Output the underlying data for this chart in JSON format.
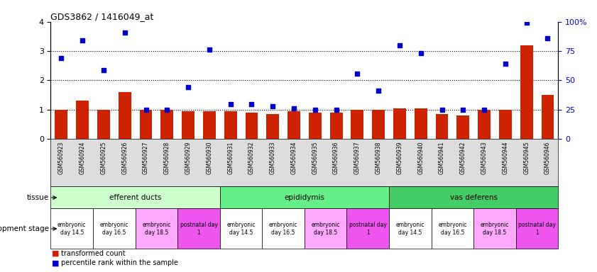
{
  "title": "GDS3862 / 1416049_at",
  "gsm_labels": [
    "GSM560923",
    "GSM560924",
    "GSM560925",
    "GSM560926",
    "GSM560927",
    "GSM560928",
    "GSM560929",
    "GSM560930",
    "GSM560931",
    "GSM560932",
    "GSM560933",
    "GSM560934",
    "GSM560935",
    "GSM560936",
    "GSM560937",
    "GSM560938",
    "GSM560939",
    "GSM560940",
    "GSM560941",
    "GSM560942",
    "GSM560943",
    "GSM560944",
    "GSM560945",
    "GSM560946"
  ],
  "bar_values": [
    1.0,
    1.3,
    1.0,
    1.6,
    1.0,
    1.0,
    0.95,
    0.95,
    0.95,
    0.9,
    0.85,
    0.95,
    0.9,
    0.9,
    1.0,
    1.0,
    1.05,
    1.05,
    0.85,
    0.8,
    1.0,
    1.0,
    3.2,
    1.5
  ],
  "dot_values_pct": [
    69,
    84,
    59,
    91,
    25,
    25,
    44,
    76,
    30,
    30,
    28,
    26,
    25,
    25,
    56,
    41,
    80,
    73,
    25,
    25,
    25,
    64,
    99,
    86
  ],
  "bar_color": "#cc2200",
  "dot_color": "#0000cc",
  "ylim_left": [
    0,
    4
  ],
  "ylim_right": [
    0,
    100
  ],
  "yticks_left": [
    0,
    1,
    2,
    3,
    4
  ],
  "yticks_right": [
    0,
    25,
    50,
    75,
    100
  ],
  "right_ytick_labels": [
    "0",
    "25",
    "50",
    "75",
    "100%"
  ],
  "tissue_groups": [
    {
      "label": "efferent ducts",
      "start": 0,
      "end": 7,
      "color": "#ccffcc"
    },
    {
      "label": "epididymis",
      "start": 8,
      "end": 15,
      "color": "#66ee88"
    },
    {
      "label": "vas deferens",
      "start": 16,
      "end": 23,
      "color": "#44cc66"
    }
  ],
  "dev_groups": [
    {
      "label": "embryonic\nday 14.5",
      "start": 0,
      "end": 1,
      "color": "#ffffff"
    },
    {
      "label": "embryonic\nday 16.5",
      "start": 2,
      "end": 3,
      "color": "#ffffff"
    },
    {
      "label": "embryonic\nday 18.5",
      "start": 4,
      "end": 5,
      "color": "#ffaaff"
    },
    {
      "label": "postnatal day\n1",
      "start": 6,
      "end": 7,
      "color": "#ee55ee"
    },
    {
      "label": "embryonic\nday 14.5",
      "start": 8,
      "end": 9,
      "color": "#ffffff"
    },
    {
      "label": "embryonic\nday 16.5",
      "start": 10,
      "end": 11,
      "color": "#ffffff"
    },
    {
      "label": "embryonic\nday 18.5",
      "start": 12,
      "end": 13,
      "color": "#ffaaff"
    },
    {
      "label": "postnatal day\n1",
      "start": 14,
      "end": 15,
      "color": "#ee55ee"
    },
    {
      "label": "embryonic\nday 14.5",
      "start": 16,
      "end": 17,
      "color": "#ffffff"
    },
    {
      "label": "embryonic\nday 16.5",
      "start": 18,
      "end": 19,
      "color": "#ffffff"
    },
    {
      "label": "embryonic\nday 18.5",
      "start": 20,
      "end": 21,
      "color": "#ffaaff"
    },
    {
      "label": "postnatal day\n1",
      "start": 22,
      "end": 23,
      "color": "#ee55ee"
    }
  ],
  "legend_bar_label": "transformed count",
  "legend_dot_label": "percentile rank within the sample",
  "tissue_row_label": "tissue",
  "dev_stage_label": "development stage",
  "right_axis_color": "#0000cc",
  "xtick_bg_color": "#dddddd"
}
